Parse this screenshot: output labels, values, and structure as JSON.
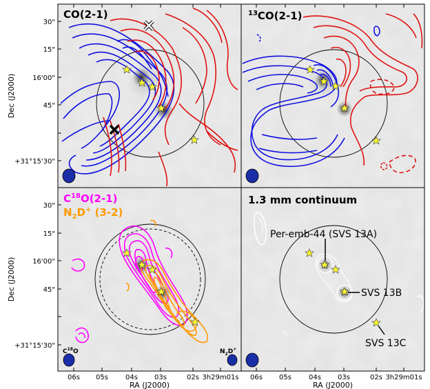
{
  "panels": {
    "co": {
      "title": "CO(2-1)"
    },
    "c13o": {
      "title_sup": "13",
      "title_main": "CO(2-1)"
    },
    "c18o": {
      "line1_main": "C",
      "line1_sup": "18",
      "line1_rest": "O(2-1)",
      "line2_main": "N",
      "line2_sub": "2",
      "line2_mid": "D",
      "line2_sup": "+",
      "line2_rest": " (3-2)",
      "beam_left": "C18O",
      "beam_left_main": "C",
      "beam_left_sup": "18",
      "beam_left_rest": "O",
      "beam_right_main": "N",
      "beam_right_sub": "2",
      "beam_right_mid": "D",
      "beam_right_sup": "+"
    },
    "cont": {
      "title": "1.3 mm continuum",
      "labels": {
        "svs13a": "Per-emb-44 (SVS 13A)",
        "svs13b": "SVS 13B",
        "svs13c": "SVS 13C"
      }
    }
  },
  "axes": {
    "ylabel": "Dec (J2000)",
    "xlabel": "RA (J2000)",
    "yticks": [
      "30\"",
      "15\"",
      "16'00\"",
      "45\"",
      "+31°15'30\""
    ],
    "xticks": [
      "06s",
      "05s",
      "04s",
      "03s",
      "02s",
      "3h29m01s"
    ]
  },
  "colors": {
    "blueshifted": "#1010e0",
    "redshifted": "#e01010",
    "c18o": "#ff00ff",
    "n2dplus": "#ff9900",
    "star": "#ffff33",
    "beam": "#1a2ea8"
  }
}
